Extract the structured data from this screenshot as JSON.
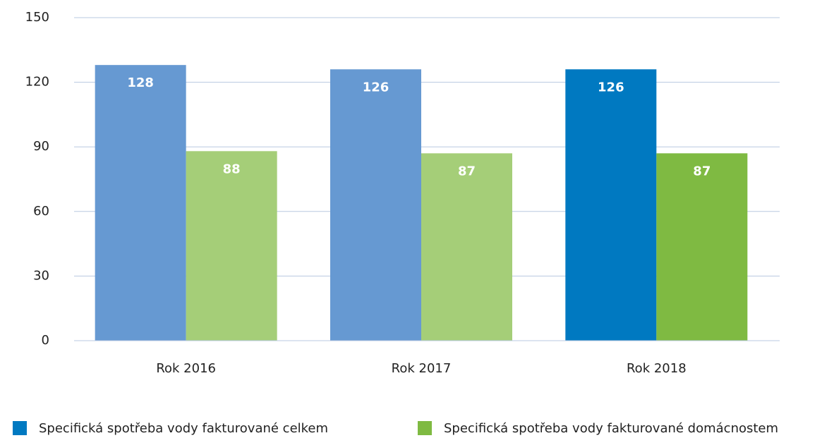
{
  "chart_data": {
    "type": "bar",
    "categories": [
      "Rok 2016",
      "Rok 2017",
      "Rok 2018"
    ],
    "series": [
      {
        "name": "Specifická spotřeba vody fakturované celkem",
        "color": "#0079c1",
        "colors": [
          "#6699d2",
          "#6699d2",
          "#0079c1"
        ],
        "values": [
          128,
          126,
          126
        ]
      },
      {
        "name": "Specifická spotřeba vody fakturované domácnostem",
        "color": "#7fba42",
        "colors": [
          "#a5ce78",
          "#a5ce78",
          "#7fba42"
        ],
        "values": [
          88,
          87,
          87
        ]
      }
    ],
    "ylim": [
      0,
      150
    ],
    "yticks": [
      0,
      30,
      60,
      90,
      120,
      150
    ],
    "grid": true,
    "legend": "bottom"
  }
}
